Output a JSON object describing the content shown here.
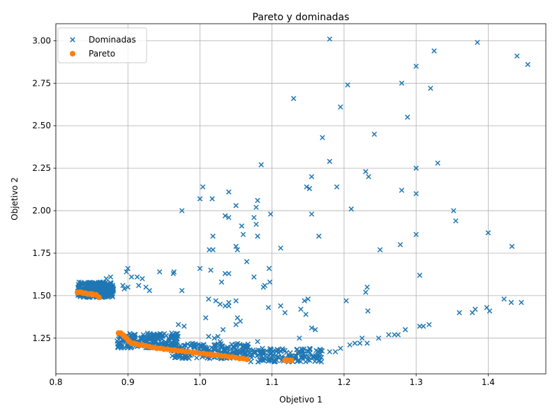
{
  "chart_data": {
    "type": "scatter",
    "title": "Pareto y dominadas",
    "xlabel": "Objetivo 1",
    "ylabel": "Objetivo 2",
    "xlim": [
      0.8,
      1.48
    ],
    "ylim": [
      1.04,
      3.1
    ],
    "xticks": [
      "0.8",
      "0.9",
      "1.0",
      "1.1",
      "1.2",
      "1.3",
      "1.4"
    ],
    "yticks": [
      "1.25",
      "1.50",
      "1.75",
      "2.00",
      "2.25",
      "2.50",
      "2.75",
      "3.00"
    ],
    "grid": true,
    "legend_position": "top-left",
    "series": [
      {
        "name": "Dominadas",
        "marker": "x",
        "color": "#1f77b4",
        "points": [
          [
            1.18,
            3.01
          ],
          [
            1.385,
            2.99
          ],
          [
            1.325,
            2.94
          ],
          [
            1.44,
            2.91
          ],
          [
            1.455,
            2.86
          ],
          [
            1.3,
            2.85
          ],
          [
            1.205,
            2.74
          ],
          [
            1.28,
            2.75
          ],
          [
            1.32,
            2.72
          ],
          [
            1.13,
            2.66
          ],
          [
            1.195,
            2.61
          ],
          [
            1.288,
            2.55
          ],
          [
            1.242,
            2.45
          ],
          [
            1.17,
            2.43
          ],
          [
            1.18,
            2.29
          ],
          [
            1.33,
            2.28
          ],
          [
            1.085,
            2.27
          ],
          [
            1.23,
            2.23
          ],
          [
            1.234,
            2.2
          ],
          [
            1.3,
            2.25
          ],
          [
            1.155,
            2.2
          ],
          [
            1.148,
            2.14
          ],
          [
            1.004,
            2.14
          ],
          [
            1.152,
            2.13
          ],
          [
            1.19,
            2.14
          ],
          [
            1.28,
            2.12
          ],
          [
            1.04,
            2.11
          ],
          [
            1.3,
            2.1
          ],
          [
            1.017,
            2.07
          ],
          [
            1.0,
            2.07
          ],
          [
            1.08,
            2.06
          ],
          [
            1.05,
            2.03
          ],
          [
            1.21,
            2.01
          ],
          [
            1.078,
            2.02
          ],
          [
            0.975,
            2.0
          ],
          [
            1.352,
            2.0
          ],
          [
            1.098,
            1.98
          ],
          [
            1.155,
            1.98
          ],
          [
            1.035,
            1.97
          ],
          [
            1.04,
            1.96
          ],
          [
            1.075,
            1.96
          ],
          [
            1.355,
            1.94
          ],
          [
            1.078,
            1.92
          ],
          [
            1.058,
            1.91
          ],
          [
            1.4,
            1.87
          ],
          [
            1.018,
            1.85
          ],
          [
            1.08,
            1.85
          ],
          [
            1.165,
            1.85
          ],
          [
            1.3,
            1.86
          ],
          [
            1.06,
            1.86
          ],
          [
            1.278,
            1.8
          ],
          [
            1.433,
            1.79
          ],
          [
            1.05,
            1.79
          ],
          [
            1.112,
            1.78
          ],
          [
            1.25,
            1.77
          ],
          [
            1.052,
            1.77
          ],
          [
            1.013,
            1.77
          ],
          [
            1.018,
            1.77
          ],
          [
            1.065,
            1.7
          ],
          [
            0.9,
            1.66
          ],
          [
            1.0,
            1.66
          ],
          [
            1.096,
            1.66
          ],
          [
            0.898,
            1.64
          ],
          [
            1.015,
            1.65
          ],
          [
            0.944,
            1.64
          ],
          [
            0.964,
            1.64
          ],
          [
            0.963,
            1.63
          ],
          [
            1.035,
            1.63
          ],
          [
            1.04,
            1.63
          ],
          [
            0.876,
            1.61
          ],
          [
            0.905,
            1.61
          ],
          [
            0.913,
            1.61
          ],
          [
            0.92,
            1.6
          ],
          [
            1.075,
            1.61
          ],
          [
            1.305,
            1.62
          ],
          [
            1.03,
            1.58
          ],
          [
            1.097,
            1.58
          ],
          [
            0.915,
            1.56
          ],
          [
            0.925,
            1.55
          ],
          [
            0.893,
            1.56
          ],
          [
            1.088,
            1.55
          ],
          [
            1.232,
            1.55
          ],
          [
            0.93,
            1.53
          ],
          [
            0.975,
            1.53
          ],
          [
            1.23,
            1.52
          ],
          [
            1.012,
            1.48
          ],
          [
            1.022,
            1.47
          ],
          [
            1.05,
            1.47
          ],
          [
            1.15,
            1.48
          ],
          [
            1.145,
            1.47
          ],
          [
            1.203,
            1.47
          ],
          [
            1.028,
            1.45
          ],
          [
            1.035,
            1.44
          ],
          [
            1.04,
            1.46
          ],
          [
            1.095,
            1.43
          ],
          [
            1.112,
            1.44
          ],
          [
            1.118,
            1.4
          ],
          [
            1.14,
            1.42
          ],
          [
            1.147,
            1.39
          ],
          [
            1.233,
            1.41
          ],
          [
            1.36,
            1.4
          ],
          [
            1.378,
            1.4
          ],
          [
            1.382,
            1.42
          ],
          [
            1.402,
            1.41
          ],
          [
            1.398,
            1.43
          ],
          [
            1.422,
            1.48
          ],
          [
            1.432,
            1.46
          ],
          [
            1.446,
            1.46
          ],
          [
            1.008,
            1.37
          ],
          [
            1.052,
            1.37
          ],
          [
            1.056,
            1.35
          ],
          [
            1.05,
            1.33
          ],
          [
            0.97,
            1.33
          ],
          [
            0.978,
            1.32
          ],
          [
            1.032,
            1.3
          ],
          [
            1.155,
            1.31
          ],
          [
            1.16,
            1.3
          ],
          [
            1.305,
            1.32
          ],
          [
            1.31,
            1.32
          ],
          [
            1.318,
            1.33
          ],
          [
            1.285,
            1.3
          ],
          [
            1.27,
            1.27
          ],
          [
            1.262,
            1.27
          ],
          [
            1.275,
            1.27
          ],
          [
            1.225,
            1.25
          ],
          [
            1.248,
            1.25
          ],
          [
            1.138,
            1.25
          ],
          [
            1.08,
            1.23
          ],
          [
            1.025,
            1.26
          ],
          [
            1.02,
            1.25
          ],
          [
            1.028,
            1.23
          ],
          [
            1.012,
            1.26
          ],
          [
            1.208,
            1.21
          ],
          [
            1.215,
            1.22
          ],
          [
            1.222,
            1.22
          ],
          [
            1.232,
            1.22
          ],
          [
            1.195,
            1.19
          ],
          [
            1.188,
            1.17
          ],
          [
            1.18,
            1.17
          ],
          [
            0.87,
            1.6
          ],
          [
            0.87,
            1.55
          ],
          [
            0.872,
            1.5
          ],
          [
            0.874,
            1.53
          ],
          [
            0.866,
            1.58
          ],
          [
            0.86,
            1.57
          ],
          [
            0.855,
            1.56
          ],
          [
            0.848,
            1.55
          ],
          [
            0.842,
            1.54
          ],
          [
            0.836,
            1.53
          ],
          [
            0.832,
            1.52
          ],
          [
            0.844,
            1.52
          ],
          [
            0.852,
            1.51
          ],
          [
            0.862,
            1.5
          ],
          [
            0.878,
            1.51
          ],
          [
            0.88,
            1.54
          ],
          [
            0.868,
            1.53
          ],
          [
            0.858,
            1.53
          ],
          [
            0.865,
            1.49
          ],
          [
            0.895,
            1.54
          ],
          [
            0.9,
            1.55
          ],
          [
            1.09,
            1.56
          ],
          [
            1.04,
            1.44
          ]
        ],
        "clusters": [
          {
            "x": [
              0.83,
              0.88
            ],
            "y": [
              1.49,
              1.58
            ],
            "n": 260
          },
          {
            "x": [
              0.885,
              0.97
            ],
            "y": [
              1.19,
              1.28
            ],
            "n": 220
          },
          {
            "x": [
              0.96,
              1.07
            ],
            "y": [
              1.13,
              1.22
            ],
            "n": 230
          },
          {
            "x": [
              1.07,
              1.17
            ],
            "y": [
              1.11,
              1.19
            ],
            "n": 150
          }
        ]
      },
      {
        "name": "Pareto",
        "marker": "o",
        "color": "#ff7f0e",
        "points": [
          [
            0.83,
            1.52
          ],
          [
            0.832,
            1.52
          ],
          [
            0.835,
            1.52
          ],
          [
            0.838,
            1.515
          ],
          [
            0.841,
            1.515
          ],
          [
            0.844,
            1.51
          ],
          [
            0.847,
            1.51
          ],
          [
            0.85,
            1.51
          ],
          [
            0.853,
            1.505
          ],
          [
            0.856,
            1.505
          ],
          [
            0.86,
            1.49
          ],
          [
            0.887,
            1.28
          ],
          [
            0.89,
            1.28
          ],
          [
            0.893,
            1.27
          ],
          [
            0.895,
            1.26
          ],
          [
            0.898,
            1.25
          ],
          [
            0.9,
            1.24
          ],
          [
            0.902,
            1.23
          ],
          [
            0.905,
            1.22
          ],
          [
            0.908,
            1.22
          ],
          [
            0.912,
            1.215
          ],
          [
            0.915,
            1.21
          ],
          [
            0.92,
            1.21
          ],
          [
            0.925,
            1.205
          ],
          [
            0.93,
            1.2
          ],
          [
            0.935,
            1.195
          ],
          [
            0.94,
            1.19
          ],
          [
            0.945,
            1.19
          ],
          [
            0.95,
            1.185
          ],
          [
            0.955,
            1.185
          ],
          [
            0.96,
            1.18
          ],
          [
            0.965,
            1.18
          ],
          [
            0.97,
            1.175
          ],
          [
            0.975,
            1.175
          ],
          [
            0.98,
            1.17
          ],
          [
            0.985,
            1.17
          ],
          [
            0.99,
            1.165
          ],
          [
            0.995,
            1.165
          ],
          [
            1.0,
            1.16
          ],
          [
            1.005,
            1.16
          ],
          [
            1.01,
            1.155
          ],
          [
            1.015,
            1.155
          ],
          [
            1.02,
            1.15
          ],
          [
            1.025,
            1.15
          ],
          [
            1.03,
            1.145
          ],
          [
            1.035,
            1.145
          ],
          [
            1.04,
            1.14
          ],
          [
            1.045,
            1.14
          ],
          [
            1.05,
            1.135
          ],
          [
            1.055,
            1.13
          ],
          [
            1.06,
            1.13
          ],
          [
            1.065,
            1.125
          ],
          [
            1.118,
            1.12
          ],
          [
            1.121,
            1.12
          ],
          [
            1.124,
            1.12
          ],
          [
            1.127,
            1.12
          ]
        ]
      }
    ]
  }
}
